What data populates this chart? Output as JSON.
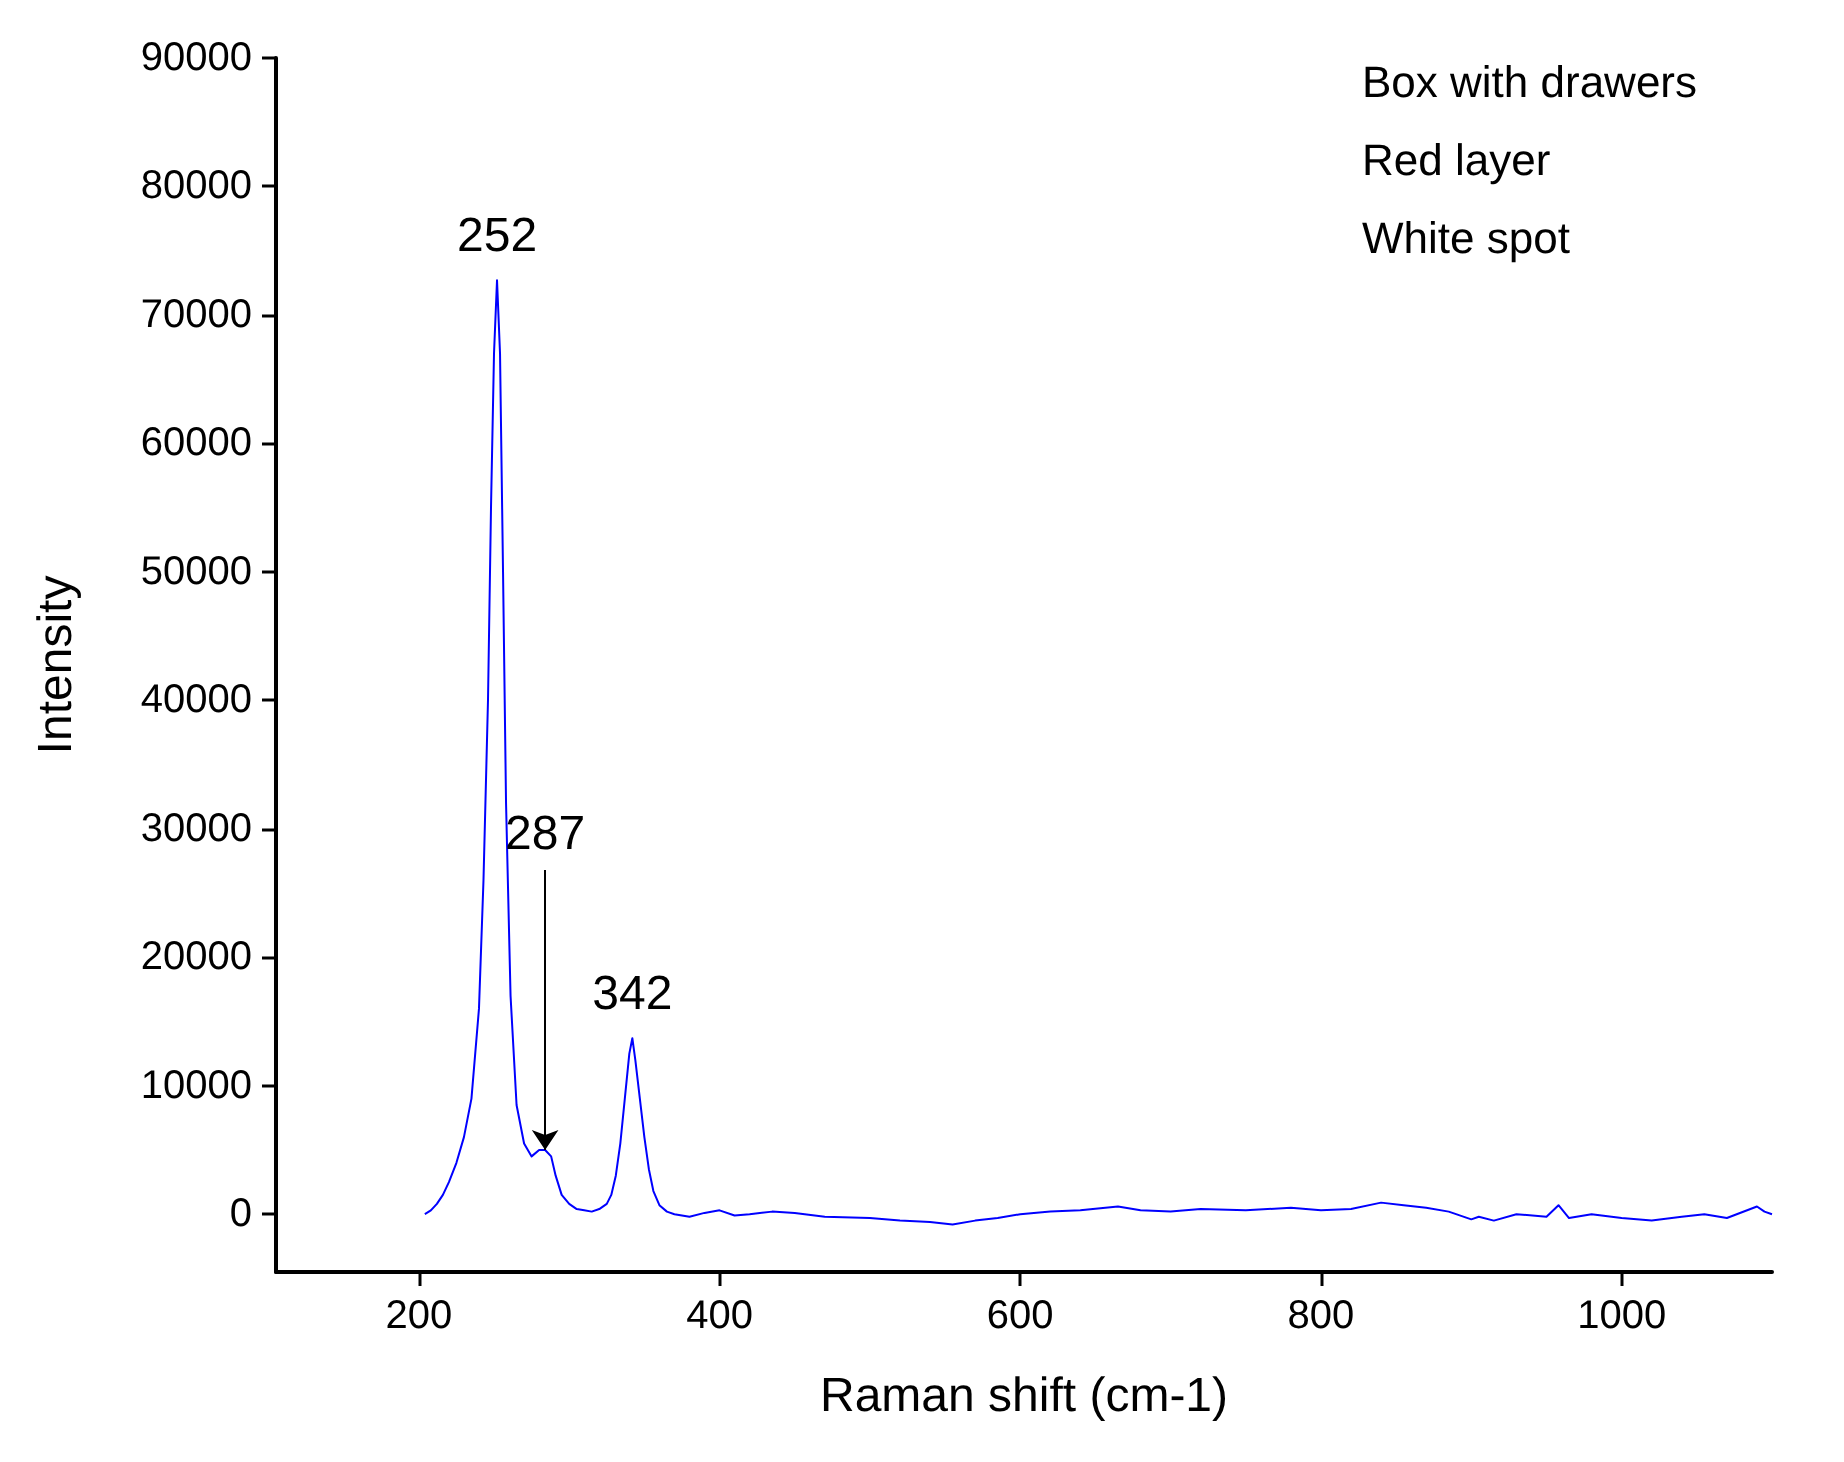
{
  "chart_data": {
    "type": "line",
    "xlabel": "Raman shift (cm-1)",
    "ylabel": "Intensity",
    "annotations": [
      {
        "text": "252",
        "x": 252,
        "y": 72700
      },
      {
        "text": "287",
        "x": 284,
        "y": 5000
      },
      {
        "text": "342",
        "x": 342,
        "y": 13700
      },
      "Box with drawers",
      "Red layer",
      "White spot"
    ],
    "xlim": [
      105,
      1100
    ],
    "xticks": [
      200,
      400,
      600,
      800,
      1000
    ],
    "ylim": [
      -4500,
      90000
    ],
    "yticks": [
      0,
      10000,
      20000,
      30000,
      40000,
      50000,
      60000,
      70000,
      80000,
      90000
    ],
    "grid": false,
    "marker": "none",
    "line_style": "solid",
    "series": [
      {
        "color": "#0000ff",
        "x": [
          204,
          208,
          212,
          216,
          220,
          225,
          230,
          235,
          240,
          243,
          246,
          248,
          250,
          252,
          254,
          256,
          258,
          261,
          265,
          270,
          275,
          280,
          284,
          288,
          291,
          295,
          300,
          305,
          310,
          315,
          320,
          325,
          328,
          331,
          334,
          337,
          340,
          342,
          344,
          347,
          350,
          353,
          356,
          360,
          365,
          370,
          380,
          390,
          400,
          410,
          420,
          435,
          450,
          470,
          500,
          520,
          540,
          555,
          570,
          585,
          600,
          620,
          640,
          665,
          680,
          700,
          720,
          750,
          780,
          800,
          820,
          840,
          855,
          870,
          885,
          900,
          905,
          915,
          930,
          950,
          958,
          965,
          980,
          1000,
          1020,
          1040,
          1055,
          1070,
          1090,
          1095,
          1100
        ],
        "values": [
          0,
          300,
          800,
          1500,
          2500,
          4000,
          6000,
          9000,
          16000,
          26000,
          40000,
          55000,
          67000,
          72700,
          67000,
          50000,
          32000,
          17000,
          8500,
          5500,
          4500,
          5000,
          5000,
          4500,
          3000,
          1500,
          800,
          400,
          300,
          200,
          400,
          800,
          1500,
          3000,
          5500,
          9000,
          12500,
          13700,
          12000,
          9000,
          6000,
          3500,
          1800,
          700,
          200,
          0,
          -200,
          100,
          300,
          -100,
          0,
          200,
          100,
          -200,
          -300,
          -500,
          -600,
          -800,
          -500,
          -300,
          0,
          200,
          300,
          600,
          300,
          200,
          400,
          300,
          500,
          300,
          400,
          900,
          700,
          500,
          200,
          -400,
          -200,
          -500,
          0,
          -200,
          700,
          -300,
          0,
          -300,
          -500,
          -200,
          0,
          -300,
          600,
          200,
          0
        ]
      }
    ]
  }
}
